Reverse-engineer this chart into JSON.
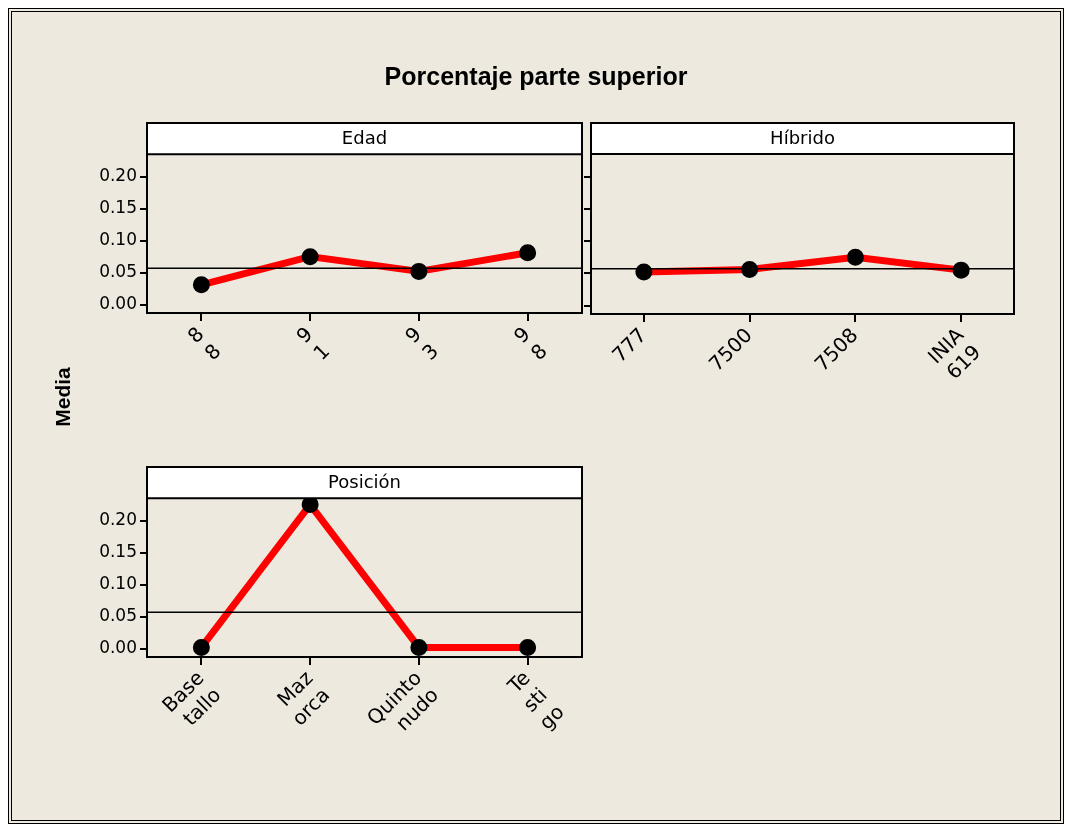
{
  "chart_data": [
    {
      "type": "line",
      "title": "Porcentaje parte superior",
      "subtitle": "Edad",
      "ylabel": "Media",
      "categories": [
        "8 8",
        "9 1",
        "9 3",
        "9 8"
      ],
      "series": [
        {
          "color": "#ff0000",
          "values": [
            0.031,
            0.075,
            0.052,
            0.081
          ]
        }
      ],
      "ylim": [
        -0.013,
        0.235
      ],
      "yticks": [
        {
          "value": 0,
          "label": "0.00"
        },
        {
          "value": 0.05,
          "label": "0.05"
        },
        {
          "value": 0.1,
          "label": "0.10"
        },
        {
          "value": 0.15,
          "label": "0.15"
        },
        {
          "value": 0.2,
          "label": "0.20"
        }
      ],
      "ref_lines": [
        {
          "axis": "y",
          "value": 0.057,
          "label": null,
          "color": "#000000"
        }
      ],
      "marker": "circle",
      "legend": false
    },
    {
      "type": "line",
      "subtitle": "Híbrido",
      "categories": [
        "777",
        "7500",
        "7508",
        "INIA 619"
      ],
      "series": [
        {
          "color": "#ff0000",
          "values": [
            0.052,
            0.056,
            0.075,
            0.055
          ]
        }
      ],
      "ylim": [
        -0.013,
        0.235
      ],
      "yticks": [
        {
          "value": 0,
          "label": null
        },
        {
          "value": 0.05,
          "label": null
        },
        {
          "value": 0.1,
          "label": null
        },
        {
          "value": 0.15,
          "label": null
        },
        {
          "value": 0.2,
          "label": null
        }
      ],
      "ref_lines": [
        {
          "axis": "y",
          "value": 0.057,
          "label": null,
          "color": "#000000"
        }
      ],
      "marker": "circle",
      "legend": false,
      "tick_labels": "x"
    },
    {
      "type": "line",
      "subtitle": "Posición",
      "categories": [
        "Base tallo",
        "Maz orca",
        "Quinto nudo",
        "Te sti go"
      ],
      "series": [
        {
          "color": "#ff0000",
          "values": [
            0.002,
            0.225,
            0.002,
            0.002
          ]
        }
      ],
      "ylim": [
        -0.013,
        0.235
      ],
      "yticks": [
        {
          "value": 0,
          "label": "0.00"
        },
        {
          "value": 0.05,
          "label": "0.05"
        },
        {
          "value": 0.1,
          "label": "0.10"
        },
        {
          "value": 0.15,
          "label": "0.15"
        },
        {
          "value": 0.2,
          "label": "0.20"
        }
      ],
      "ref_lines": [
        {
          "axis": "y",
          "value": 0.057,
          "label": null,
          "color": "#000000"
        }
      ],
      "marker": "circle",
      "legend": false
    }
  ]
}
